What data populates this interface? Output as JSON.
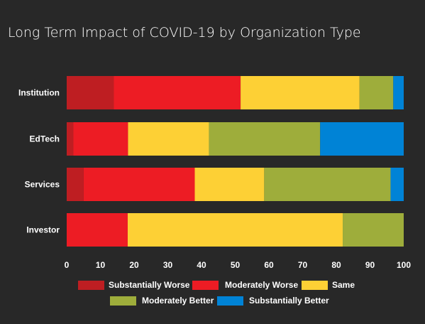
{
  "chart_data": {
    "type": "bar",
    "orientation": "horizontal",
    "stacked": true,
    "title": "Long Term Impact of COVID-19 by Organization Type",
    "categories": [
      "Institution",
      "EdTech",
      "Services",
      "Investor"
    ],
    "series": [
      {
        "name": "Substantially Worse",
        "color": "#be1e22",
        "values": [
          14,
          2,
          5,
          0
        ]
      },
      {
        "name": "Moderately Worse",
        "color": "#ed1c24",
        "values": [
          37.6,
          16.2,
          33,
          18.1
        ]
      },
      {
        "name": "Same",
        "color": "#fdd035",
        "values": [
          35.3,
          24,
          20.6,
          63.8
        ]
      },
      {
        "name": "Moderately Better",
        "color": "#9ead3b",
        "values": [
          10,
          33,
          37.5,
          18.1
        ]
      },
      {
        "name": "Substantially Better",
        "color": "#0083d6",
        "values": [
          3.1,
          24.8,
          3.9,
          0
        ]
      }
    ],
    "xlim": [
      0,
      100
    ],
    "xticks": [
      "0",
      "10",
      "20",
      "30",
      "40",
      "50",
      "60",
      "70",
      "80",
      "90",
      "100"
    ],
    "xlabel": "",
    "ylabel": "",
    "grid": false,
    "legend_position": "bottom"
  }
}
